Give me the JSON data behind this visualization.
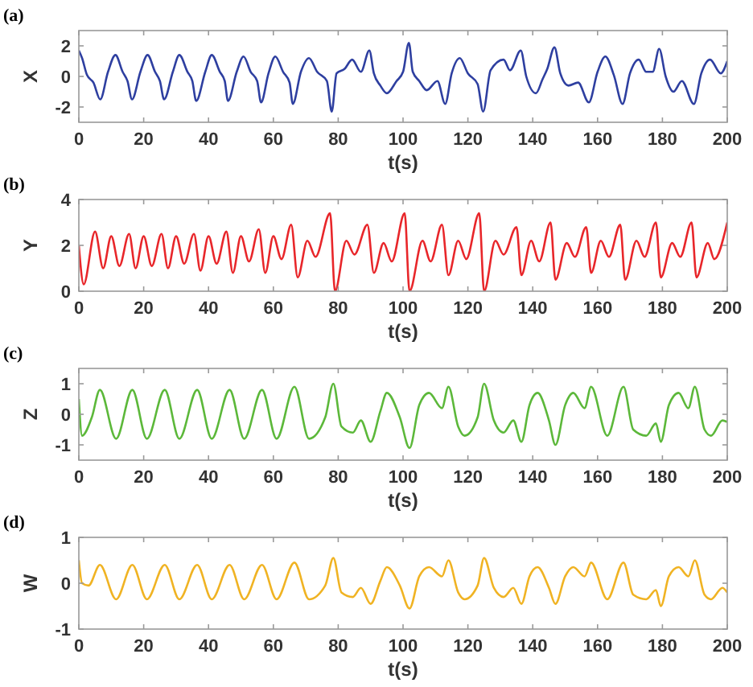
{
  "chart_data": [
    {
      "type": "line",
      "title": "(a)",
      "xlabel": "t(s)",
      "ylabel": "X",
      "xlim": [
        0,
        200
      ],
      "xticks": [
        0,
        20,
        40,
        60,
        80,
        100,
        120,
        140,
        160,
        180,
        200
      ],
      "ylim": [
        -3,
        3
      ],
      "yticks": [
        -2,
        0,
        2
      ],
      "x": [
        0,
        1,
        2.5,
        4.5,
        6.6,
        9,
        11.3,
        13.5,
        15,
        16.4,
        19,
        21.2,
        23.5,
        25,
        26.3,
        29,
        31,
        33.5,
        35,
        36.2,
        39,
        41,
        43.5,
        45,
        46,
        48.7,
        50.8,
        53,
        55,
        56.2,
        58.5,
        60.6,
        63,
        65,
        66,
        68.5,
        71,
        73.5,
        76.5,
        78,
        79.5,
        82,
        84.3,
        87,
        89.6,
        91,
        93,
        95,
        98,
        100,
        101.8,
        103,
        105,
        107.3,
        110.6,
        113,
        115,
        117.5,
        120,
        123,
        124.7,
        127,
        131,
        133,
        136.3,
        138,
        141,
        143,
        144.5,
        146.7,
        148.5,
        151,
        154,
        157.3,
        160,
        162.4,
        165,
        167.7,
        170,
        172.7,
        175,
        177,
        179,
        181,
        183.4,
        186,
        189.7,
        192,
        194.7,
        198,
        200
      ],
      "series": [
        {
          "color": "#2e3fa0",
          "values": [
            1.7,
            1.2,
            0.1,
            -0.4,
            -1.5,
            0.3,
            1.4,
            0.3,
            -0.3,
            -1.5,
            0.3,
            1.4,
            0.3,
            -0.3,
            -1.5,
            0.3,
            1.4,
            0.3,
            -0.3,
            -1.6,
            0.3,
            1.4,
            0.3,
            -0.3,
            -1.6,
            0.3,
            1.3,
            0.3,
            -0.3,
            -1.7,
            0.2,
            1.3,
            0.3,
            -0.4,
            -1.8,
            0.3,
            1.2,
            0.3,
            -0.3,
            -2.3,
            0.2,
            0.5,
            1.1,
            0.3,
            1.7,
            0.2,
            -0.6,
            -1.1,
            -0.3,
            0.3,
            2.2,
            0.3,
            -0.3,
            -0.9,
            -0.3,
            -1.8,
            0.2,
            1.2,
            0.2,
            -0.5,
            -2.3,
            0.4,
            1.1,
            0.4,
            1.7,
            0,
            -1.1,
            -0.2,
            0.5,
            1.9,
            0.2,
            -0.6,
            -0.4,
            -1.7,
            0.3,
            1.3,
            0.1,
            -1.8,
            0.2,
            1.1,
            0.3,
            0.3,
            1.8,
            0,
            -1,
            -0.3,
            -1.8,
            0.2,
            1.1,
            0.2,
            1
          ]
        }
      ]
    },
    {
      "type": "line",
      "title": "(b)",
      "xlabel": "t(s)",
      "ylabel": "Y",
      "xlim": [
        0,
        200
      ],
      "xticks": [
        0,
        20,
        40,
        60,
        80,
        100,
        120,
        140,
        160,
        180,
        200
      ],
      "ylim": [
        0,
        4
      ],
      "yticks": [
        0,
        2,
        4
      ],
      "x": [
        0,
        1.5,
        5,
        7.5,
        10,
        12.5,
        15.5,
        17.5,
        20,
        22.5,
        25.5,
        27.5,
        30,
        32.5,
        35.5,
        37.5,
        40,
        42.5,
        45.5,
        47.5,
        50,
        52.5,
        55.5,
        57.5,
        60,
        62.5,
        65.5,
        67.5,
        70.5,
        73,
        77.5,
        79,
        82.5,
        85,
        89,
        91,
        94,
        96.5,
        100.5,
        102,
        106,
        108.5,
        112,
        114,
        117,
        119.5,
        123.5,
        125,
        128.5,
        131,
        135,
        136.5,
        139.5,
        142,
        145.5,
        147,
        150.5,
        153,
        156.5,
        158,
        161,
        163.5,
        167,
        168.5,
        172,
        174.5,
        178,
        179.5,
        183,
        185.5,
        189,
        190.5,
        194,
        196,
        200
      ],
      "series": [
        {
          "color": "#e8262a",
          "values": [
            2,
            0.3,
            2.6,
            1,
            2.4,
            1.1,
            2.5,
            1,
            2.4,
            1.1,
            2.5,
            1,
            2.4,
            1.2,
            2.5,
            0.9,
            2.4,
            1.2,
            2.6,
            0.8,
            2.4,
            1.3,
            2.7,
            0.8,
            2.4,
            1.4,
            2.9,
            0.6,
            2.2,
            1.5,
            3.4,
            0,
            2.2,
            1.6,
            2.9,
            0.8,
            2.1,
            1.3,
            3.4,
            0,
            2.2,
            1.3,
            2.9,
            0.7,
            2.2,
            1.4,
            3.4,
            0,
            2.2,
            1.6,
            2.8,
            0.7,
            2.2,
            1.3,
            3,
            0.5,
            2.1,
            1.5,
            2.8,
            0.8,
            2.2,
            1.5,
            2.9,
            0.5,
            2.2,
            1.5,
            3,
            0.6,
            2.1,
            1.5,
            3,
            0.6,
            2.1,
            1.4,
            3
          ]
        }
      ]
    },
    {
      "type": "line",
      "title": "(c)",
      "xlabel": "t(s)",
      "ylabel": "Z",
      "xlim": [
        0,
        200
      ],
      "xticks": [
        0,
        20,
        40,
        60,
        80,
        100,
        120,
        140,
        160,
        180,
        200
      ],
      "ylim": [
        -1.5,
        1.5
      ],
      "yticks": [
        -1,
        0,
        1
      ],
      "x": [
        0,
        1,
        4,
        6.5,
        11.5,
        16.5,
        21,
        26.5,
        31,
        36.5,
        41,
        46.5,
        51,
        56.5,
        61,
        66.5,
        71,
        76,
        78.5,
        81,
        84.5,
        87,
        90,
        93,
        95,
        99,
        102,
        105,
        108,
        112,
        114,
        117,
        119,
        123,
        125,
        128,
        131,
        134,
        136.5,
        139,
        141.5,
        145,
        147,
        150,
        152.5,
        156,
        158,
        163,
        168,
        171,
        175,
        178,
        179.5,
        182,
        185,
        188,
        190,
        193,
        195,
        198.5,
        200
      ],
      "series": [
        {
          "color": "#5cb83a",
          "values": [
            0.5,
            -0.7,
            -0.1,
            0.8,
            -0.8,
            0.8,
            -0.8,
            0.8,
            -0.8,
            0.8,
            -0.8,
            0.8,
            -0.8,
            0.8,
            -0.8,
            0.9,
            -0.8,
            -0.1,
            1,
            -0.4,
            -0.6,
            -0.2,
            -0.9,
            0.1,
            0.7,
            -0.1,
            -1.1,
            0.3,
            0.7,
            0.2,
            0.9,
            -0.4,
            -0.7,
            -0.1,
            1,
            -0.2,
            -0.6,
            -0.2,
            -0.9,
            0.3,
            0.7,
            -0.2,
            -1,
            0.3,
            0.7,
            0.2,
            0.9,
            -0.7,
            0.9,
            -0.5,
            -0.7,
            -0.3,
            -0.9,
            0.3,
            0.7,
            0.2,
            0.9,
            -0.5,
            -0.7,
            -0.2,
            -0.25
          ]
        }
      ]
    },
    {
      "type": "line",
      "title": "(d)",
      "xlabel": "t(s)",
      "ylabel": "W",
      "xlim": [
        0,
        200
      ],
      "xticks": [
        0,
        20,
        40,
        60,
        80,
        100,
        120,
        140,
        160,
        180,
        200
      ],
      "ylim": [
        -1,
        1
      ],
      "yticks": [
        -1,
        0,
        1
      ],
      "x": [
        0,
        1,
        3,
        6.5,
        11.5,
        16.5,
        21,
        26.5,
        31,
        36.5,
        41,
        46.5,
        51,
        56.5,
        61,
        66.5,
        71,
        76,
        78.5,
        81,
        84.5,
        87,
        90,
        93,
        95,
        99,
        102,
        105,
        108,
        112,
        114,
        117,
        119,
        123,
        125,
        128,
        131,
        134,
        136.5,
        139,
        141.5,
        145,
        147,
        150,
        152.5,
        156,
        158,
        163,
        168,
        171,
        175,
        178,
        179.5,
        182,
        185,
        188,
        190,
        193,
        195,
        198.5,
        200
      ],
      "series": [
        {
          "color": "#f0b323",
          "values": [
            0.5,
            0,
            -0.05,
            0.4,
            -0.35,
            0.4,
            -0.35,
            0.4,
            -0.35,
            0.4,
            -0.35,
            0.4,
            -0.35,
            0.4,
            -0.35,
            0.45,
            -0.35,
            -0.05,
            0.55,
            -0.2,
            -0.3,
            -0.1,
            -0.45,
            0.05,
            0.35,
            -0.05,
            -0.55,
            0.15,
            0.35,
            0.15,
            0.5,
            -0.2,
            -0.35,
            -0.05,
            0.55,
            -0.1,
            -0.3,
            -0.1,
            -0.45,
            0.15,
            0.35,
            -0.1,
            -0.45,
            0.15,
            0.35,
            0.15,
            0.45,
            -0.35,
            0.45,
            -0.25,
            -0.35,
            -0.15,
            -0.5,
            0.15,
            0.35,
            0.15,
            0.5,
            -0.25,
            -0.35,
            -0.1,
            -0.2
          ]
        }
      ]
    }
  ]
}
